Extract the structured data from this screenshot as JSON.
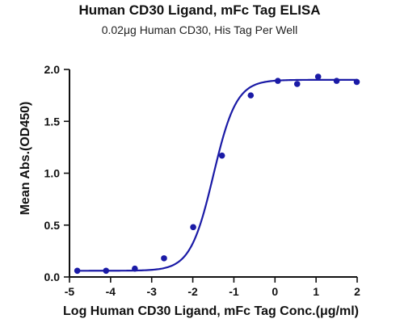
{
  "chart_data": {
    "type": "scatter",
    "title": "Human CD30 Ligand, mFc Tag ELISA",
    "subtitle": "0.02μg Human CD30, His Tag Per Well",
    "xlabel": "Log Human CD30 Ligand, mFc Tag Conc.(μg/ml)",
    "ylabel": "Mean Abs.(OD450)",
    "xlim": [
      -5,
      2
    ],
    "ylim": [
      0,
      2.0
    ],
    "x_ticks": [
      -5,
      -4,
      -3,
      -2,
      -1,
      0,
      1,
      2
    ],
    "x_tick_labels": [
      "-5",
      "-4",
      "-3",
      "-2",
      "-1",
      "0",
      "1",
      "2"
    ],
    "y_ticks": [
      0,
      0.5,
      1.0,
      1.5,
      2.0
    ],
    "y_tick_labels": [
      "0.0",
      "0.5",
      "1.0",
      "1.5",
      "2.0"
    ],
    "grid": false,
    "color": "#1a1aa6",
    "series": [
      {
        "x": [
          -4.81,
          -4.11,
          -3.41,
          -2.7,
          -1.99,
          -1.29,
          -0.59,
          0.07,
          0.54,
          1.05,
          1.5,
          1.99
        ],
        "y": [
          0.06,
          0.06,
          0.08,
          0.18,
          0.48,
          1.17,
          1.75,
          1.89,
          1.86,
          1.93,
          1.89,
          1.88
        ]
      }
    ],
    "fit": {
      "model": "4PL",
      "bottom": 0.06,
      "top": 1.9,
      "log_ec50": -1.5,
      "hill": 1.55
    }
  }
}
